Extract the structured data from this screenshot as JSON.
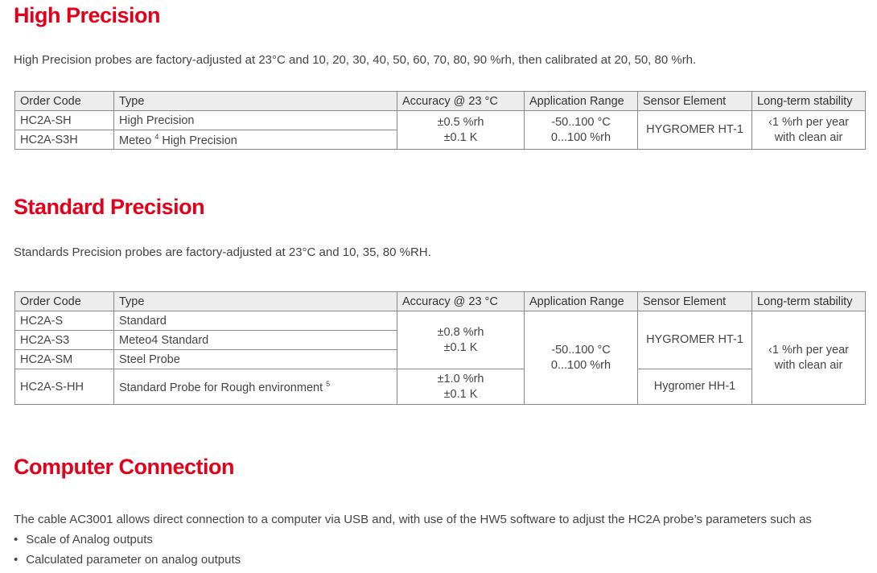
{
  "sections": {
    "high": {
      "title": "High Precision",
      "intro": "High Precision probes are factory-adjusted at 23°C and 10, 20, 30, 40, 50, 60, 70, 80, 90 %rh, then calibrated at 20, 50, 80 %rh.",
      "headers": [
        "Order Code",
        "Type",
        "Accuracy @ 23 °C",
        "Application Range",
        "Sensor Element",
        "Long-term stability"
      ],
      "rows": [
        {
          "code": "HC2A-SH",
          "type": "High Precision"
        },
        {
          "code": "HC2A-S3H",
          "type": "Meteo",
          "type_sup": "4",
          "type_rest": " High Precision"
        }
      ],
      "accuracy": [
        "±0.5 %rh",
        "±0.1 K"
      ],
      "range": [
        "-50..100 °C",
        "0...100 %rh"
      ],
      "sensor": "HYGROMER HT-1",
      "stability": [
        "‹1 %rh per year",
        "with clean air"
      ]
    },
    "standard": {
      "title": "Standard Precision",
      "intro": "Standards Precision probes are factory-adjusted at 23°C and 10, 35, 80 %RH.",
      "headers": [
        "Order Code",
        "Type",
        "Accuracy @ 23 °C",
        "Application Range",
        "Sensor Element",
        "Long-term stability"
      ],
      "rows": [
        {
          "code": "HC2A-S",
          "type": "Standard"
        },
        {
          "code": "HC2A-S3",
          "type": "Meteo4 Standard"
        },
        {
          "code": "HC2A-SM",
          "type": "Steel Probe"
        },
        {
          "code": "HC2A-S-HH",
          "type": "Standard Probe for Rough environment",
          "type_sup": "5"
        }
      ],
      "accuracy1": [
        "±0.8 %rh",
        "±0.1 K"
      ],
      "accuracy2": [
        "±1.0 %rh",
        "±0.1 K"
      ],
      "range": [
        "-50..100 °C",
        "0...100 %rh"
      ],
      "sensor1": "HYGROMER HT-1",
      "sensor2": "Hygromer HH-1",
      "stability": [
        "‹1 %rh per year",
        "with clean air"
      ]
    },
    "computer": {
      "title": "Computer Connection",
      "intro": "The cable AC3001 allows direct connection to a computer via USB and, with use of the HW5 software to adjust the HC2A probe’s parameters such as",
      "bullets": [
        "Scale of Analog outputs",
        "Calculated parameter on analog outputs"
      ]
    }
  }
}
